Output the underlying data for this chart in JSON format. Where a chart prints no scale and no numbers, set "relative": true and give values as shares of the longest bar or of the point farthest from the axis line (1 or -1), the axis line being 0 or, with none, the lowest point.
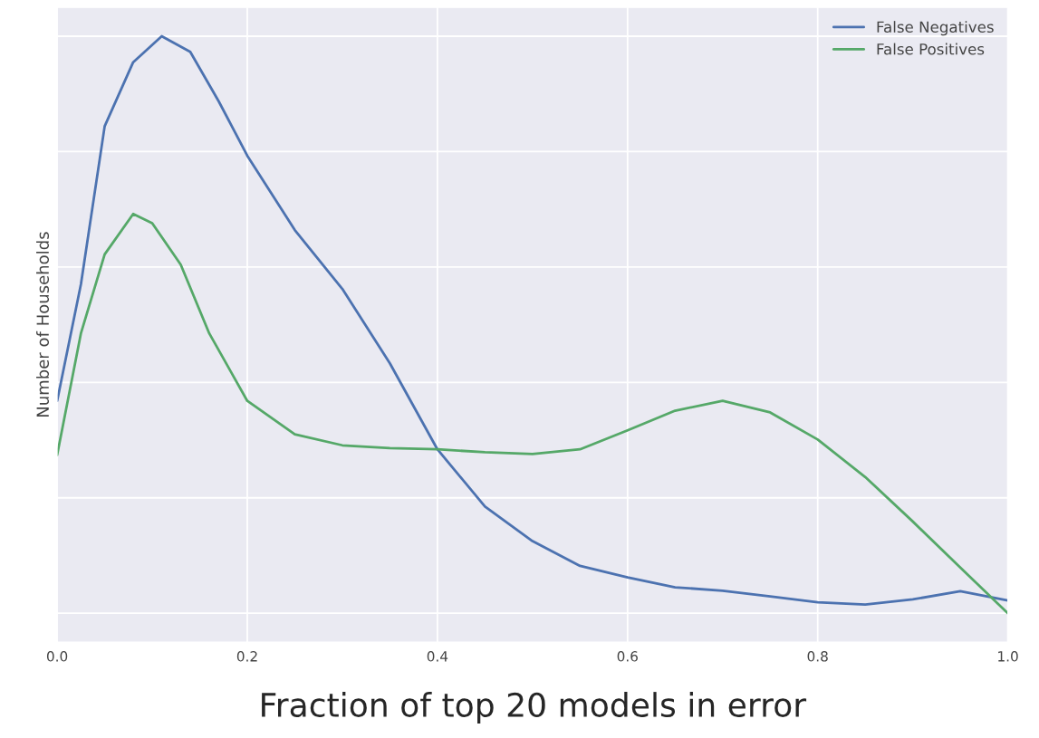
{
  "chart_data": {
    "type": "line",
    "xlabel": "Fraction of top 20 models in error",
    "ylabel": "Number of Households",
    "relative": true,
    "xlim": [
      0.0,
      1.0
    ],
    "xticks": [
      {
        "value": 0.0,
        "label": "0.0"
      },
      {
        "value": 0.2,
        "label": "0.2"
      },
      {
        "value": 0.4,
        "label": "0.4"
      },
      {
        "value": 0.6,
        "label": "0.6"
      },
      {
        "value": 0.8,
        "label": "0.8"
      },
      {
        "value": 1.0,
        "label": "1.0"
      }
    ],
    "grid": true,
    "legend": "top right",
    "marker": "none",
    "line_style": "solid",
    "series": [
      {
        "name": "False Negatives",
        "color": "#4c72b0",
        "x": [
          0.0,
          0.025,
          0.05,
          0.08,
          0.11,
          0.14,
          0.17,
          0.2,
          0.25,
          0.3,
          0.35,
          0.4,
          0.45,
          0.5,
          0.55,
          0.6,
          0.65,
          0.7,
          0.75,
          0.8,
          0.85,
          0.9,
          0.95,
          1.0
        ],
        "values": [
          0.368,
          0.57,
          0.844,
          0.955,
          1.0,
          0.973,
          0.887,
          0.793,
          0.664,
          0.562,
          0.433,
          0.284,
          0.185,
          0.125,
          0.082,
          0.062,
          0.045,
          0.039,
          0.029,
          0.019,
          0.015,
          0.024,
          0.038,
          0.022
        ]
      },
      {
        "name": "False Positives",
        "color": "#55a868",
        "x": [
          0.0,
          0.025,
          0.05,
          0.08,
          0.1,
          0.13,
          0.16,
          0.2,
          0.25,
          0.3,
          0.35,
          0.4,
          0.45,
          0.5,
          0.55,
          0.6,
          0.65,
          0.7,
          0.75,
          0.8,
          0.85,
          0.9,
          0.95,
          1.0
        ],
        "values": [
          0.274,
          0.485,
          0.622,
          0.692,
          0.676,
          0.604,
          0.485,
          0.368,
          0.31,
          0.291,
          0.286,
          0.284,
          0.279,
          0.276,
          0.284,
          0.317,
          0.351,
          0.368,
          0.348,
          0.301,
          0.236,
          0.159,
          0.079,
          0.0
        ]
      }
    ]
  }
}
